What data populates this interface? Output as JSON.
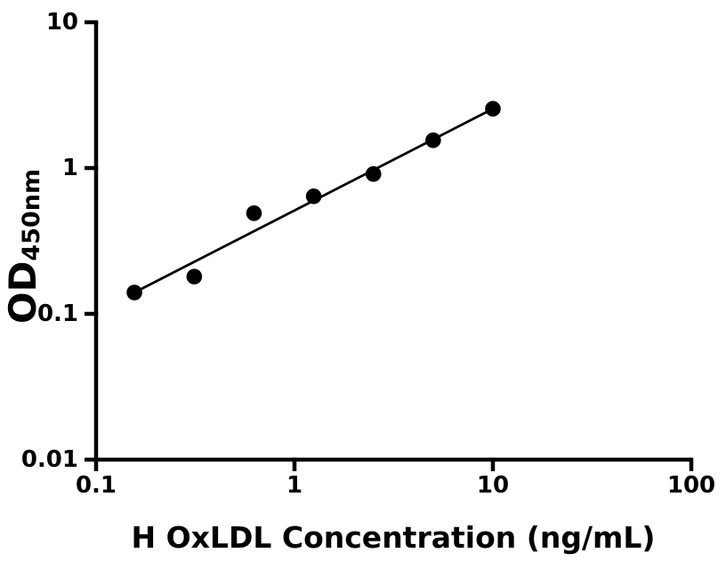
{
  "chart_data": {
    "type": "scatter",
    "title": "",
    "xlabel": "H OxLDL Concentration (ng/mL)",
    "ylabel": "OD",
    "ylabel_sub": "450nm",
    "xscale": "log",
    "yscale": "log",
    "xlim": [
      0.1,
      100
    ],
    "ylim": [
      0.01,
      10
    ],
    "grid": false,
    "legend": "none",
    "xticks": [
      {
        "value": 0.1,
        "label": "0.1"
      },
      {
        "value": 1,
        "label": "1"
      },
      {
        "value": 10,
        "label": "10"
      },
      {
        "value": 100,
        "label": "100"
      }
    ],
    "yticks": [
      {
        "value": 10,
        "label": "10"
      },
      {
        "value": 1,
        "label": "1"
      },
      {
        "value": 0.1,
        "label": "0.1"
      },
      {
        "value": 0.01,
        "label": "0.01"
      }
    ],
    "series": [
      {
        "name": "standard-curve-points",
        "type": "scatter",
        "marker": "filled-circle",
        "color": "#000000",
        "points": [
          {
            "x": 0.156,
            "y": 0.14
          },
          {
            "x": 0.3125,
            "y": 0.18
          },
          {
            "x": 0.625,
            "y": 0.49
          },
          {
            "x": 1.25,
            "y": 0.64
          },
          {
            "x": 2.5,
            "y": 0.91
          },
          {
            "x": 5,
            "y": 1.55
          },
          {
            "x": 10,
            "y": 2.55
          }
        ]
      },
      {
        "name": "fit-line",
        "type": "line",
        "color": "#000000",
        "points": [
          {
            "x": 0.156,
            "y": 0.14
          },
          {
            "x": 10,
            "y": 2.55
          }
        ]
      }
    ],
    "colors": {
      "background": "#ffffff",
      "axis": "#000000",
      "marker": "#000000",
      "line": "#000000"
    }
  }
}
